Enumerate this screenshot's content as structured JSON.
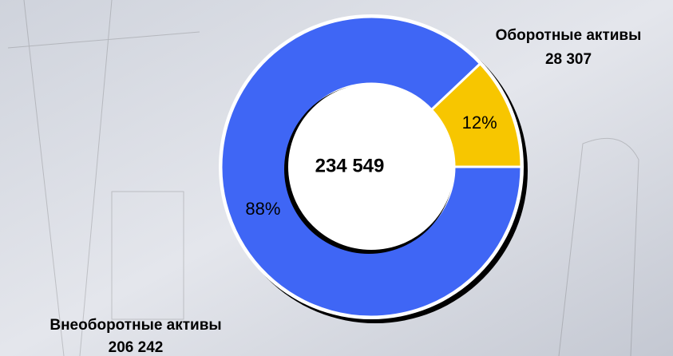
{
  "chart_data": {
    "type": "donut",
    "categories": [
      "Оборотные активы",
      "Внеоборотные активы"
    ],
    "values": [
      28307,
      206242
    ],
    "value_labels": [
      "28 307",
      "206 242"
    ],
    "percents": [
      12,
      88
    ],
    "percent_labels": [
      "12%",
      "88%"
    ],
    "colors": [
      "#f7c600",
      "#3f66f5"
    ],
    "total": {
      "value": 234549,
      "label": "234 549"
    }
  }
}
